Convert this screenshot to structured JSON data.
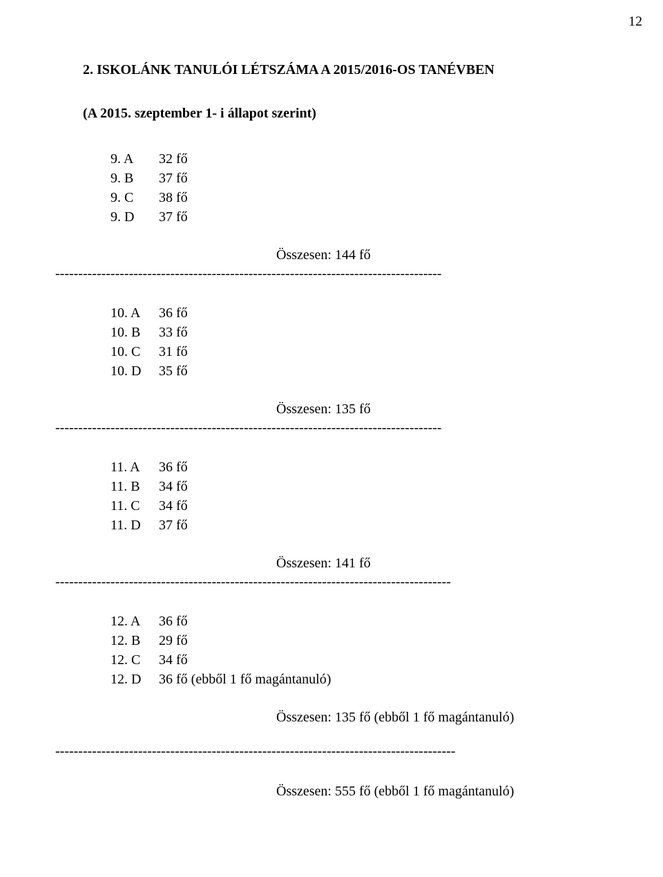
{
  "page_number": "12",
  "title": "2. ISKOLÁNK TANULÓI  LÉTSZÁMA A 2015/2016-OS TANÉVBEN",
  "subtitle": "(A 2015. szeptember 1- i állapot szerint)",
  "groups": [
    {
      "rows": [
        {
          "label": "9. A",
          "value": "32 fő"
        },
        {
          "label": "9. B",
          "value": "37 fő"
        },
        {
          "label": "9. C",
          "value": "38 fő"
        },
        {
          "label": "9. D",
          "value": "37 fő"
        }
      ],
      "total": "Összesen: 144 fő",
      "dash": "------------------------------------------------------------------------------------"
    },
    {
      "rows": [
        {
          "label": "10. A",
          "value": "36 fő"
        },
        {
          "label": "10. B",
          "value": "33 fő"
        },
        {
          "label": "10. C",
          "value": "31 fő"
        },
        {
          "label": "10. D",
          "value": "35 fő"
        }
      ],
      "total": "Összesen: 135 fő",
      "dash": "------------------------------------------------------------------------------------"
    },
    {
      "rows": [
        {
          "label": "11. A",
          "value": "36 fő"
        },
        {
          "label": "11. B",
          "value": "34 fő"
        },
        {
          "label": "11. C",
          "value": "34 fő"
        },
        {
          "label": "11. D",
          "value": "37 fő"
        }
      ],
      "total": "Összesen: 141 fő",
      "dash": "--------------------------------------------------------------------------------------"
    },
    {
      "rows": [
        {
          "label": "12. A",
          "value": "36 fő"
        },
        {
          "label": "12. B",
          "value": "29 fő"
        },
        {
          "label": "12. C",
          "value": "34 fő"
        },
        {
          "label": "12. D",
          "value": "36 fő (ebből 1 fő magántanuló)"
        }
      ],
      "total": "Összesen: 135 fő (ebből 1 fő magántanuló)",
      "dash": ""
    }
  ],
  "final_dash": "---------------------------------------------------------------------------------------",
  "grand_total": "Összesen: 555 fő (ebből 1 fő magántanuló)"
}
